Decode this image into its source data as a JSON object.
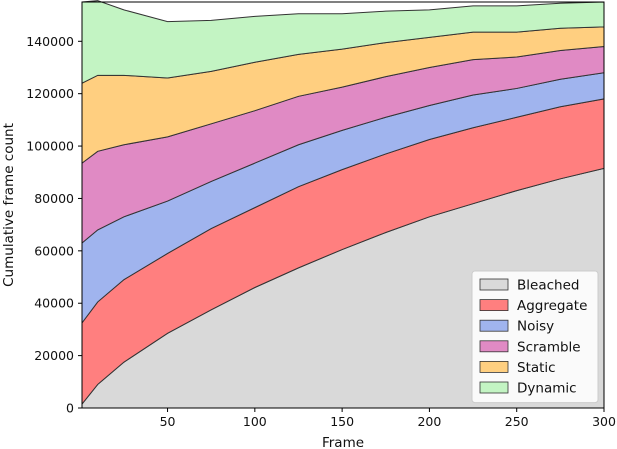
{
  "chart_data": {
    "type": "area",
    "stacked": true,
    "xlabel": "Frame",
    "ylabel": "Cumulative frame count",
    "xlim": [
      1,
      300
    ],
    "ylim": [
      0,
      155000
    ],
    "xticks": [
      50,
      100,
      150,
      200,
      250,
      300
    ],
    "yticks": [
      0,
      20000,
      40000,
      60000,
      80000,
      100000,
      120000,
      140000
    ],
    "grid": false,
    "legend_position": "bottom-right",
    "x": [
      1,
      10,
      25,
      50,
      75,
      100,
      125,
      150,
      175,
      200,
      225,
      250,
      275,
      300
    ],
    "series": [
      {
        "name": "Bleached",
        "color": "#d9d9d9",
        "values": [
          1500,
          9000,
          17500,
          28500,
          37500,
          46000,
          53500,
          60500,
          67000,
          73000,
          78000,
          83000,
          87500,
          91500
        ]
      },
      {
        "name": "Aggregate",
        "color": "#ff7f7f",
        "values": [
          31000,
          31500,
          31500,
          30500,
          31000,
          30500,
          31000,
          30500,
          30000,
          29500,
          29000,
          28000,
          27500,
          26500
        ]
      },
      {
        "name": "Noisy",
        "color": "#a0b4ee",
        "values": [
          30500,
          27500,
          24000,
          20000,
          18000,
          17000,
          16000,
          15000,
          14000,
          13000,
          12500,
          11000,
          10500,
          10000
        ]
      },
      {
        "name": "Scramble",
        "color": "#e08ac4",
        "values": [
          30500,
          30000,
          27500,
          24500,
          22000,
          20000,
          18500,
          16500,
          15500,
          14500,
          13500,
          12000,
          11000,
          10000
        ]
      },
      {
        "name": "Static",
        "color": "#ffcf80",
        "values": [
          30500,
          29000,
          26500,
          22500,
          20000,
          18500,
          16000,
          14500,
          13000,
          11500,
          10500,
          9500,
          8500,
          7500
        ]
      },
      {
        "name": "Dynamic",
        "color": "#c3f4c3",
        "values": [
          31000,
          28500,
          25000,
          21500,
          19500,
          17500,
          15500,
          13500,
          12000,
          10500,
          10000,
          10000,
          9500,
          9500
        ]
      }
    ]
  }
}
